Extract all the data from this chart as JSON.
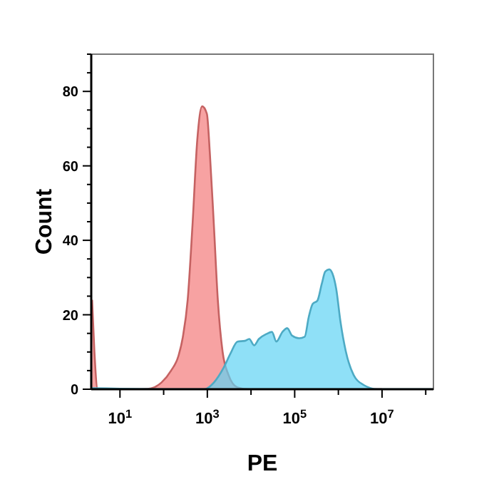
{
  "chart_data": {
    "type": "area",
    "xlabel": "PE",
    "ylabel": "Count",
    "log": "x",
    "grid": false,
    "xlim": [
      2.2,
      150000000.0
    ],
    "ylim": [
      0,
      90
    ],
    "xticks": [
      {
        "value": 10,
        "label": "10$^{1}$"
      },
      {
        "value": 100,
        "label": null
      },
      {
        "value": 1000,
        "label": "10$^{3}$"
      },
      {
        "value": 10000,
        "label": null
      },
      {
        "value": 100000,
        "label": "10$^{5}$"
      },
      {
        "value": 1000000,
        "label": null
      },
      {
        "value": 10000000,
        "label": "10$^{7}$"
      },
      {
        "value": 100000000,
        "label": null
      }
    ],
    "yticks": [
      0,
      {
        "value": 5,
        "label": null
      },
      {
        "value": 10,
        "label": null
      },
      {
        "value": 15,
        "label": null
      },
      20,
      {
        "value": 25,
        "label": null
      },
      {
        "value": 30,
        "label": null
      },
      {
        "value": 35,
        "label": null
      },
      40,
      {
        "value": 45,
        "label": null
      },
      {
        "value": 50,
        "label": null
      },
      {
        "value": 55,
        "label": null
      },
      60,
      {
        "value": 65,
        "label": null
      },
      {
        "value": 70,
        "label": null
      },
      {
        "value": 75,
        "label": null
      },
      80,
      {
        "value": 85,
        "label": null
      },
      {
        "value": 90,
        "label": null
      }
    ],
    "series": [
      {
        "color": "#f47a7a",
        "x": [
          2.3,
          2.6,
          3.1,
          18,
          43,
          89,
          148,
          219,
          275,
          355,
          457,
          589,
          759,
          977,
          1148,
          1413,
          1738,
          2239,
          3020,
          4898,
          9120,
          10000000.0
        ],
        "values": [
          24,
          10,
          0,
          0,
          0.1,
          1.8,
          5,
          9,
          14,
          24,
          44,
          67,
          76,
          74,
          63,
          44,
          24,
          10,
          4,
          0.5,
          0,
          0
        ]
      },
      {
        "color": "#5fd3f3",
        "x": [
          2.3,
          245,
          851,
          1413,
          2344,
          3388,
          4898,
          7244,
          9120,
          11750,
          15140,
          22390,
          30200,
          38020,
          52480,
          67610,
          87100,
          125900,
          169800,
          208900,
          257000,
          331100,
          416900,
          501200,
          616600,
          724400,
          891300,
          1122000,
          1479000,
          2239000,
          3715000,
          7943000,
          14800000.0,
          140000000.0
        ],
        "values": [
          0.3,
          0,
          0,
          1.8,
          5.7,
          9.6,
          12.8,
          13,
          13.5,
          11.8,
          13.5,
          14.8,
          15.4,
          12.8,
          15.4,
          16.4,
          14.4,
          13.7,
          14.1,
          19.3,
          22.9,
          23.8,
          28.3,
          31.6,
          32.2,
          31.2,
          27,
          18,
          10.2,
          3.8,
          1.2,
          0,
          0,
          0
        ]
      }
    ]
  }
}
